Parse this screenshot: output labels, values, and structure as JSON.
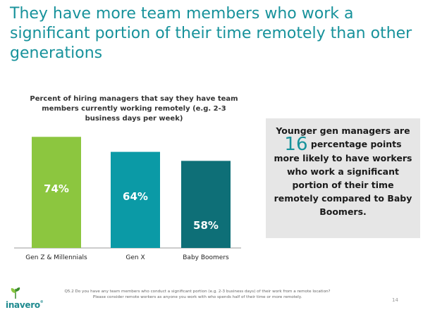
{
  "headline": "They have more team members who work a significant portion of their time remotely than other generations",
  "callout": {
    "line1": "Younger gen managers are",
    "number": "16",
    "line2": "percentage points",
    "line3": "more likely to have workers who work a significant portion of their time remotely compared to Baby Boomers."
  },
  "footnote": "Q5.2 Do you have any team members who conduct a significant portion (e.g. 2-3 business days) of their work from a remote location? Please consider remote workers as anyone you work with who spends half of their time or more remotely.",
  "page_number": "14",
  "logo": {
    "text": "inavero",
    "tm": "®"
  },
  "colors": {
    "accent": "#17929b",
    "bar_gen_z": "#8cc63f",
    "bar_gen_x": "#0b9aa6",
    "bar_boomers": "#0e6f77"
  },
  "chart_data": {
    "type": "bar",
    "title": "Percent of hiring managers that say they have team members currently working remotely (e.g. 2-3 business days per week)",
    "categories": [
      "Gen Z & Millennials",
      "Gen X",
      "Baby Boomers"
    ],
    "values": [
      74,
      64,
      58
    ],
    "value_labels": [
      "74%",
      "64%",
      "58%"
    ],
    "colors": [
      "#8cc63f",
      "#0b9aa6",
      "#0e6f77"
    ],
    "xlabel": "",
    "ylabel": "",
    "ylim": [
      0,
      76
    ],
    "grid": false,
    "legend": "none"
  }
}
